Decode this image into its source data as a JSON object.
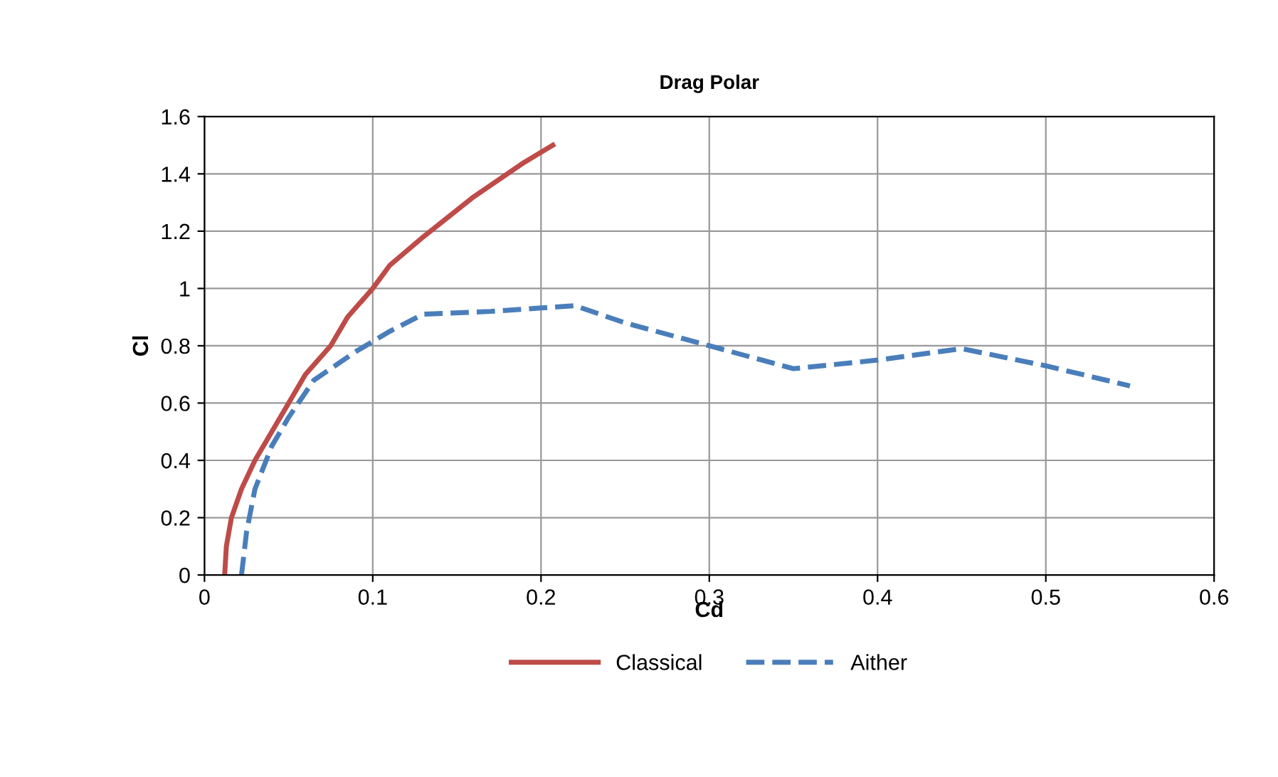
{
  "chart_data": {
    "type": "line",
    "title": "Drag Polar",
    "xlabel": "Cd",
    "ylabel": "Cl",
    "xlim": [
      0,
      0.6
    ],
    "xticks": [
      0,
      0.1,
      0.2,
      0.3,
      0.4,
      0.5,
      0.6
    ],
    "ylim": [
      0,
      1.6
    ],
    "yticks": [
      0,
      0.2,
      0.4,
      0.6,
      0.8,
      1,
      1.2,
      1.4,
      1.6
    ],
    "grid": true,
    "legend": "bottom",
    "marker": "none",
    "series": [
      {
        "name": "Classical",
        "color": "#be4b48",
        "line_style": "solid",
        "x": [
          0.012,
          0.013,
          0.016,
          0.022,
          0.03,
          0.04,
          0.05,
          0.06,
          0.075,
          0.085,
          0.1,
          0.11,
          0.13,
          0.16,
          0.19,
          0.207
        ],
        "values": [
          0,
          0.1,
          0.2,
          0.3,
          0.4,
          0.5,
          0.6,
          0.7,
          0.8,
          0.9,
          1.0,
          1.08,
          1.18,
          1.32,
          1.44,
          1.5
        ]
      },
      {
        "name": "Aither",
        "color": "#4a7ebb",
        "line_style": "dashed",
        "x": [
          0.022,
          0.025,
          0.03,
          0.04,
          0.05,
          0.065,
          0.09,
          0.11,
          0.13,
          0.17,
          0.22,
          0.25,
          0.3,
          0.35,
          0.4,
          0.45,
          0.5,
          0.55
        ],
        "values": [
          0,
          0.15,
          0.3,
          0.45,
          0.55,
          0.68,
          0.78,
          0.85,
          0.91,
          0.92,
          0.94,
          0.88,
          0.8,
          0.72,
          0.75,
          0.79,
          0.73,
          0.66
        ]
      }
    ]
  }
}
